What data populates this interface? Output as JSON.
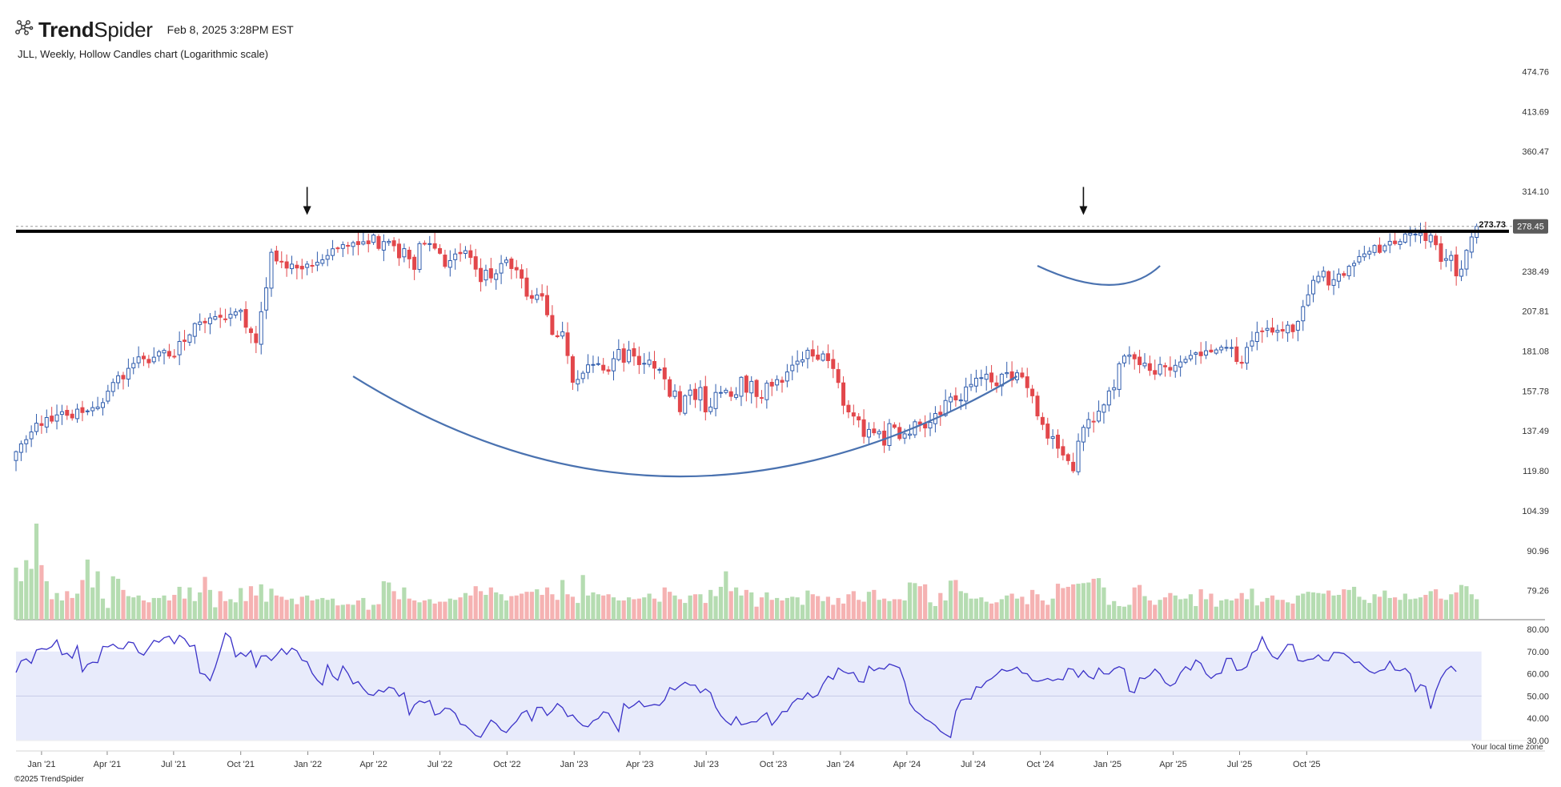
{
  "header": {
    "brand_bold": "Trend",
    "brand_light": "Spider",
    "timestamp": "Feb 8, 2025 3:28PM EST",
    "subtitle": "JLL, Weekly, Hollow Candles chart (Logarithmic scale)",
    "logo_icon": "spider-web-icon"
  },
  "footer": {
    "copyright": "©2025 TrendSpider",
    "timezone_note": "Your local time zone"
  },
  "colors": {
    "up": "#2f5cad",
    "down": "#e2474b",
    "vol_up": "#b5dcb1",
    "vol_down": "#f5b2b2",
    "rsi_line": "#3b32c8",
    "rsi_band": "#e8ebfb",
    "arc": "#4a72b0",
    "resistance": "#000000",
    "price_label_bg": "#5b5b5b"
  },
  "chart_data": {
    "type": "candlestick",
    "symbol": "JLL",
    "interval": "Weekly",
    "scale": "log",
    "x_start": "2020-11-27",
    "x_step_days": 7,
    "x_ticks": [
      "Jan '21",
      "Apr '21",
      "Jul '21",
      "Oct '21",
      "Jan '22",
      "Apr '22",
      "Jul '22",
      "Oct '22",
      "Jan '23",
      "Apr '23",
      "Jul '23",
      "Oct '23",
      "Jan '24",
      "Apr '24",
      "Jul '24",
      "Oct '24",
      "Jan '25",
      "Apr '25",
      "Jul '25",
      "Oct '25"
    ],
    "price_axis_ticks": [
      474.76,
      413.69,
      360.47,
      314.1,
      273.73,
      238.49,
      207.81,
      181.08,
      157.78,
      137.49,
      119.8,
      104.39,
      90.96,
      79.26
    ],
    "price_range": [
      72.5,
      515
    ],
    "last_price": 278.45,
    "resistance_level": 273.73,
    "close": [
      128.0,
      131.5,
      133.4,
      137.0,
      141.2,
      140.1,
      144.0,
      142.2,
      145.3,
      146.9,
      145.1,
      143.8,
      148.2,
      146.5,
      147.3,
      149.0,
      149.3,
      151.6,
      157.7,
      162.5,
      166.3,
      164.5,
      170.6,
      173.5,
      177.5,
      176.3,
      173.9,
      177.3,
      180.7,
      181.5,
      178.0,
      177.9,
      187.2,
      187.2,
      191.5,
      199.1,
      200.2,
      199.6,
      203.0,
      203.9,
      203.5,
      201.8,
      205.6,
      207.3,
      208.5,
      196.6,
      193.0,
      186.4,
      207.4,
      225.2,
      254.6,
      247.1,
      246.8,
      241.1,
      244.4,
      241.2,
      240.4,
      244.4,
      242.8,
      246.0,
      248.1,
      251.8,
      257.7,
      257.9,
      261.4,
      260.0,
      263.2,
      261.4,
      264.0,
      262.2,
      270.2,
      258.0,
      264.2,
      264.4,
      260.4,
      249.8,
      257.8,
      248.9,
      240.0,
      262.3,
      262.3,
      262.3,
      258.2,
      253.7,
      242.5,
      247.4,
      253.1,
      253.4,
      256.0,
      250.1,
      240.2,
      230.1,
      239.3,
      233.0,
      236.4,
      244.9,
      247.9,
      240.7,
      239.6,
      232.8,
      218.8,
      217.2,
      219.7,
      218.9,
      205.2,
      191.8,
      190.3,
      193.5,
      178.3,
      162.6,
      164.2,
      167.8,
      172.7,
      172.9,
      173.4,
      169.6,
      168.9,
      176.4,
      182.1,
      174.2,
      181.7,
      178.0,
      172.8,
      173.6,
      175.5,
      170.7,
      170.0,
      164.5,
      154.9,
      157.8,
      146.9,
      155.2,
      158.3,
      153.2,
      159.7,
      146.8,
      149.3,
      157.0,
      157.0,
      158.2,
      154.9,
      155.8,
      165.4,
      157.1,
      163.1,
      154.8,
      154.0,
      162.1,
      160.5,
      164.1,
      162.6,
      168.5,
      172.5,
      174.9,
      175.7,
      181.6,
      178.0,
      176.0,
      179.3,
      175.2,
      170.5,
      162.5,
      150.2,
      146.8,
      144.7,
      142.8,
      134.9,
      138.2,
      136.6,
      137.2,
      130.9,
      141.0,
      139.2,
      133.9,
      136.1,
      136.0,
      141.9,
      140.7,
      138.9,
      141.6,
      146.0,
      145.4,
      152.7,
      154.5,
      153.0,
      153.0,
      160.0,
      161.4,
      164.9,
      165.2,
      167.2,
      162.8,
      160.7,
      167.2,
      168.1,
      163.8,
      168.0,
      165.6,
      159.6,
      155.2,
      144.8,
      140.6,
      134.1,
      134.8,
      129.5,
      126.5,
      124.1,
      119.8,
      132.7,
      139.2,
      143.0,
      141.8,
      147.2,
      150.4,
      157.8,
      159.6,
      173.3,
      178.0,
      178.6,
      176.3,
      172.8,
      173.7,
      169.4,
      167.2,
      172.9,
      171.5,
      169.6,
      172.4,
      174.4,
      176.0,
      178.4,
      180.0,
      178.2,
      181.3,
      180.6,
      181.8,
      183.5,
      183.4,
      183.3,
      174.7,
      173.6,
      183.4,
      187.5,
      193.1,
      193.6,
      195.8,
      193.3,
      194.5,
      194.0,
      198.0,
      193.6,
      200.6,
      211.1,
      219.9,
      231.1,
      234.4,
      238.5,
      227.4,
      231.7,
      236.2,
      235.1,
      242.6,
      245.1,
      250.9,
      253.2,
      255.4,
      260.6,
      254.5,
      260.4,
      264.4,
      262.3,
      264.2,
      271.2,
      271.9,
      271.1,
      272.1,
      265.1,
      270.0,
      261.3,
      246.7,
      249.1,
      251.8,
      234.7,
      240.2,
      256.3,
      268.4,
      278.45
    ],
    "volume_relative": [
      0.84,
      0.62,
      0.96,
      0.82,
      1.55,
      0.88,
      0.62,
      0.33,
      0.43,
      0.31,
      0.46,
      0.35,
      0.42,
      0.64,
      0.97,
      0.52,
      0.78,
      0.34,
      0.19,
      0.7,
      0.66,
      0.48,
      0.38,
      0.36,
      0.39,
      0.31,
      0.28,
      0.35,
      0.35,
      0.39,
      0.31,
      0.4,
      0.53,
      0.34,
      0.52,
      0.3,
      0.44,
      0.69,
      0.48,
      0.2,
      0.46,
      0.3,
      0.33,
      0.28,
      0.51,
      0.3,
      0.54,
      0.39,
      0.57,
      0.29,
      0.5,
      0.39,
      0.37,
      0.32,
      0.34,
      0.25,
      0.37,
      0.39,
      0.31,
      0.33,
      0.35,
      0.32,
      0.34,
      0.23,
      0.24,
      0.25,
      0.24,
      0.31,
      0.35,
      0.16,
      0.24,
      0.25,
      0.62,
      0.6,
      0.46,
      0.33,
      0.52,
      0.34,
      0.31,
      0.28,
      0.31,
      0.33,
      0.26,
      0.29,
      0.29,
      0.34,
      0.32,
      0.36,
      0.43,
      0.39,
      0.54,
      0.46,
      0.4,
      0.52,
      0.44,
      0.41,
      0.31,
      0.38,
      0.39,
      0.42,
      0.45,
      0.45,
      0.49,
      0.4,
      0.52,
      0.41,
      0.32,
      0.64,
      0.41,
      0.37,
      0.27,
      0.72,
      0.39,
      0.44,
      0.41,
      0.39,
      0.41,
      0.36,
      0.31,
      0.31,
      0.36,
      0.33,
      0.34,
      0.36,
      0.42,
      0.34,
      0.29,
      0.52,
      0.45,
      0.39,
      0.33,
      0.27,
      0.39,
      0.41,
      0.41,
      0.27,
      0.48,
      0.38,
      0.53,
      0.78,
      0.46,
      0.52,
      0.39,
      0.48,
      0.44,
      0.21,
      0.36,
      0.44,
      0.32,
      0.35,
      0.31,
      0.35,
      0.37,
      0.36,
      0.24,
      0.47,
      0.41,
      0.38,
      0.3,
      0.37,
      0.24,
      0.35,
      0.26,
      0.41,
      0.46,
      0.32,
      0.29,
      0.45,
      0.48,
      0.32,
      0.34,
      0.3,
      0.33,
      0.33,
      0.31,
      0.6,
      0.59,
      0.54,
      0.57,
      0.28,
      0.22,
      0.43,
      0.31,
      0.63,
      0.64,
      0.46,
      0.43,
      0.34,
      0.34,
      0.36,
      0.29,
      0.26,
      0.28,
      0.33,
      0.39,
      0.42,
      0.34,
      0.37,
      0.25,
      0.48,
      0.41,
      0.31,
      0.24,
      0.34,
      0.58,
      0.51,
      0.53,
      0.57,
      0.58,
      0.59,
      0.6,
      0.66,
      0.67,
      0.52,
      0.24,
      0.3,
      0.22,
      0.21,
      0.24,
      0.52,
      0.56,
      0.38,
      0.31,
      0.24,
      0.32,
      0.36,
      0.43,
      0.39,
      0.33,
      0.34,
      0.41,
      0.22,
      0.49,
      0.33,
      0.42,
      0.21,
      0.31,
      0.33,
      0.31,
      0.34,
      0.43,
      0.33,
      0.5,
      0.23,
      0.29,
      0.35,
      0.39,
      0.32,
      0.32,
      0.28,
      0.26,
      0.39,
      0.42,
      0.45,
      0.44,
      0.43,
      0.42,
      0.47,
      0.39,
      0.4,
      0.49,
      0.48,
      0.53,
      0.37,
      0.32,
      0.27,
      0.41,
      0.37,
      0.47,
      0.35,
      0.36,
      0.32,
      0.42,
      0.33,
      0.34,
      0.36,
      0.4,
      0.46,
      0.49,
      0.34,
      0.32,
      0.41,
      0.44,
      0.56,
      0.54,
      0.41,
      0.33,
      0.41,
      0.46,
      0.48,
      0.53
    ],
    "rsi": {
      "axis_ticks": [
        80.0,
        70.0,
        60.0,
        50.0,
        40.0,
        30.0
      ],
      "range": [
        30,
        80
      ],
      "band": [
        30,
        70
      ],
      "midline": 50,
      "values": [
        60.6,
        65.8,
        66.7,
        64.7,
        70.7,
        71.3,
        71.0,
        72.2,
        75.2,
        68.6,
        69.2,
        67.0,
        72.6,
        60.9,
        64.2,
        65.2,
        65.0,
        72.3,
        72.1,
        73.3,
        71.5,
        71.2,
        74.3,
        73.9,
        69.6,
        68.4,
        71.7,
        75.0,
        74.2,
        76.2,
        76.9,
        73.5,
        77.3,
        75.7,
        72.3,
        72.8,
        60.3,
        59.7,
        56.9,
        62.9,
        70.4,
        78.3,
        76.3,
        67.6,
        69.5,
        67.8,
        70.4,
        63.0,
        68.0,
        68.1,
        66.0,
        68.4,
        71.3,
        68.7,
        71.5,
        70.3,
        66.1,
        65.4,
        60.2,
        57.1,
        55.0,
        64.0,
        59.0,
        57.1,
        63.5,
        60.1,
        55.5,
        56.5,
        53.3,
        50.8,
        50.3,
        52.7,
        51.8,
        54.0,
        53.4,
        49.9,
        51.5,
        41.6,
        46.0,
        47.8,
        47.0,
        48.0,
        41.5,
        42.2,
        44.6,
        44.2,
        42.2,
        37.4,
        36.8,
        34.7,
        32.3,
        31.5,
        35.4,
        39.2,
        37.6,
        34.7,
        33.6,
        36.4,
        38.7,
        42.3,
        43.5,
        38.8,
        44.9,
        44.9,
        41.3,
        43.4,
        46.6,
        44.8,
        40.8,
        41.5,
        38.7,
        36.7,
        36.2,
        38.9,
        39.9,
        42.9,
        42.3,
        38.1,
        34.1,
        46.6,
        44.5,
        45.9,
        47.8,
        45.2,
        45.7,
        46.2,
        45.8,
        48.3,
        53.8,
        52.7,
        54.6,
        56.2,
        54.9,
        54.9,
        51.5,
        53.2,
        51.5,
        45.0,
        41.2,
        38.7,
        37.0,
        40.7,
        37.1,
        37.6,
        38.4,
        38.4,
        40.8,
        42.5,
        36.9,
        39.6,
        43.0,
        43.1,
        46.9,
        48.9,
        48.5,
        51.5,
        49.3,
        50.5,
        55.4,
        58.9,
        57.5,
        62.6,
        61.0,
        60.1,
        60.6,
        56.5,
        56.2,
        63.4,
        61.4,
        62.6,
        62.1,
        64.4,
        63.6,
        62.7,
        56.3,
        46.8,
        43.5,
        41.8,
        39.7,
        38.5,
        36.8,
        34.2,
        32.7,
        31.4,
        43.2,
        48.1,
        48.7,
        48.6,
        54.2,
        53.8,
        56.6,
        57.8,
        59.7,
        62.0,
        61.2,
        61.8,
        63.0,
        60.4,
        60.0,
        57.0,
        56.6,
        57.1,
        57.9,
        56.9,
        57.7,
        57.3,
        62.4,
        62.0,
        58.4,
        61.4,
        58.8,
        57.7,
        62.6,
        60.0,
        59.9,
        62.2,
        63.2,
        62.2,
        52.2,
        51.5,
        58.2,
        57.8,
        59.3,
        62.1,
        59.9,
        56.0,
        54.5,
        55.8,
        60.4,
        63.2,
        61.7,
        66.2,
        64.7,
        60.0,
        57.9,
        59.8,
        60.3,
        66.9,
        66.9,
        61.5,
        61.8,
        63.2,
        69.4,
        70.7,
        76.6,
        71.4,
        67.8,
        66.6,
        69.8,
        73.2,
        73.1,
        66.0,
        65.6,
        66.4,
        66.7,
        68.5,
        66.1,
        65.8,
        69.6,
        69.5,
        69.1,
        67.3,
        65.0,
        65.3,
        63.0,
        61.1,
        60.2,
        61.4,
        61.9,
        65.7,
        61.7,
        61.4,
        62.4,
        60.0,
        52.0,
        55.1,
        54.3,
        44.3,
        52.3,
        58.0,
        61.6,
        63.4,
        61.0
      ]
    },
    "annotations": [
      {
        "type": "arrow",
        "date": "2021-12-31",
        "price": 292
      },
      {
        "type": "arrow",
        "date": "2024-11-29",
        "price": 292
      },
      {
        "type": "arc",
        "from": [
          "2022-03-04",
          166
        ],
        "vertex": [
          "2023-05-26",
          117.5
        ],
        "to": [
          "2024-08-30",
          166
        ]
      },
      {
        "type": "arc",
        "from": [
          "2024-09-27",
          243
        ],
        "vertex": [
          "2025-01-03",
          227.5
        ],
        "to": [
          "2025-03-14",
          243
        ]
      }
    ]
  }
}
